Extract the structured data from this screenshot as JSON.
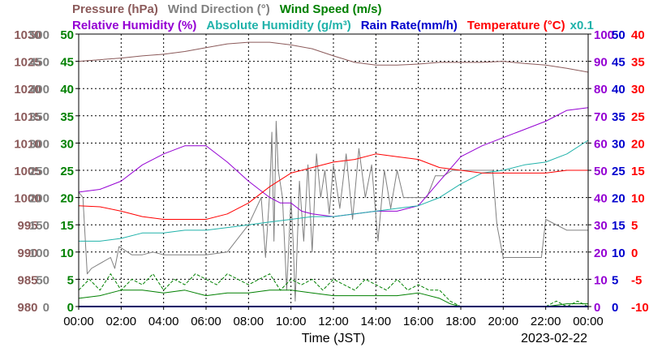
{
  "chart_data": {
    "type": "line",
    "date_label": "2023-02-22",
    "xlabel": "Time (JST)",
    "x_ticks": [
      "00:00",
      "02:00",
      "04:00",
      "06:00",
      "08:00",
      "10:00",
      "12:00",
      "14:00",
      "16:00",
      "18:00",
      "20:00",
      "22:00",
      "00:00"
    ],
    "x_range_hours": [
      0,
      24
    ],
    "legend_rows": [
      [
        {
          "text": "Pressure (hPa)",
          "color": "#8b5a5a"
        },
        {
          "text": "Wind Direction (°)",
          "color": "#808080"
        },
        {
          "text": "Wind Speed (m/s)",
          "color": "#008000"
        }
      ],
      [
        {
          "text": "Relative Humidity (%)",
          "color": "#9400d3"
        },
        {
          "text": "Absolute Humidity (g/m³)",
          "color": "#20b2aa"
        },
        {
          "text": "Rain Rate(mm/h)",
          "color": "#0000cd"
        },
        {
          "text": "Temperature (°C)",
          "color": "#ff0000"
        },
        {
          "text": "x0.1",
          "color": "#20b2aa"
        }
      ]
    ],
    "axes": {
      "pressure": {
        "color": "#8b5a5a",
        "ticks": [
          "980",
          "985",
          "990",
          "995",
          "1000",
          "1005",
          "1010",
          "1015",
          "1020",
          "1025",
          "1030"
        ],
        "range": [
          980,
          1030
        ]
      },
      "wind_direction": {
        "color": "#808080",
        "ticks": [
          "0",
          "50",
          "100",
          "150",
          "200",
          "250",
          "300",
          "350",
          "400",
          "450",
          "500"
        ],
        "range": [
          0,
          500
        ]
      },
      "wind_speed": {
        "color": "#008000",
        "ticks": [
          "0",
          "5",
          "10",
          "15",
          "20",
          "25",
          "30",
          "35",
          "40",
          "45",
          "50"
        ],
        "range": [
          0,
          50
        ]
      },
      "humidity": {
        "color": "#9400d3",
        "ticks": [
          "0",
          "10",
          "20",
          "30",
          "40",
          "50",
          "60",
          "70",
          "80",
          "90",
          "100"
        ],
        "range": [
          0,
          100
        ]
      },
      "rain_rate": {
        "color": "#0000cd",
        "ticks": [
          "0",
          "5",
          "10",
          "15",
          "20",
          "25",
          "30",
          "35",
          "40",
          "45",
          "50"
        ],
        "range": [
          0,
          50
        ]
      },
      "temperature": {
        "color": "#ff0000",
        "ticks": [
          "-10",
          "-5",
          "0",
          "5",
          "10",
          "15",
          "20",
          "25",
          "30",
          "35",
          "40"
        ],
        "range": [
          -10,
          40
        ]
      }
    },
    "series": [
      {
        "key": "pressure",
        "name": "Pressure (hPa)",
        "axis": "pressure",
        "color": "#8b5a5a",
        "x": [
          0,
          1,
          2,
          3,
          4,
          5,
          6,
          7,
          8,
          9,
          10,
          11,
          12,
          13,
          14,
          15,
          16,
          17,
          18,
          19,
          20,
          21,
          22,
          23,
          24
        ],
        "y": [
          1025,
          1025.3,
          1025.6,
          1026,
          1026.3,
          1026.8,
          1027.5,
          1028.2,
          1028.5,
          1028.5,
          1028,
          1027.3,
          1026,
          1024.8,
          1024.3,
          1024.3,
          1024.5,
          1024.8,
          1024.8,
          1024.8,
          1025,
          1024.6,
          1024.3,
          1023.7,
          1023
        ]
      },
      {
        "key": "wind_direction",
        "name": "Wind Direction (°)",
        "axis": "wind_direction",
        "color": "#808080",
        "x": [
          0,
          0.2,
          0.4,
          0.6,
          1.5,
          1.7,
          1.9,
          2.5,
          3,
          3.5,
          4,
          5,
          6,
          7,
          8,
          8.6,
          8.8,
          9,
          9.1,
          9.2,
          9.3,
          9.4,
          9.6,
          9.8,
          10,
          10.1,
          10.2,
          10.4,
          10.6,
          10.8,
          11,
          11.2,
          11.4,
          11.6,
          11.8,
          12,
          12.3,
          12.6,
          12.9,
          13.2,
          13.5,
          13.8,
          14.1,
          14.4,
          14.7,
          15,
          15.3,
          15.6,
          16,
          16.4,
          16.8,
          17.2,
          17.6,
          18,
          18.5,
          19,
          19.5,
          19.7,
          20,
          21,
          21.8,
          22,
          23,
          24
        ],
        "y": [
          210,
          200,
          60,
          70,
          90,
          70,
          110,
          95,
          95,
          100,
          95,
          95,
          95,
          100,
          150,
          200,
          90,
          210,
          320,
          120,
          340,
          250,
          200,
          30,
          200,
          120,
          10,
          230,
          120,
          260,
          100,
          280,
          200,
          250,
          170,
          260,
          180,
          280,
          160,
          290,
          200,
          260,
          120,
          250,
          180,
          250,
          200,
          200,
          200,
          200,
          240,
          240,
          250,
          250,
          250,
          250,
          250,
          150,
          90,
          90,
          90,
          160,
          140,
          140
        ]
      },
      {
        "key": "wind_speed",
        "name": "Wind Speed (m/s)",
        "axis": "wind_speed",
        "color": "#008000",
        "x": [
          0,
          1,
          2,
          3,
          4,
          5,
          6,
          7,
          8,
          9,
          10,
          11,
          12,
          13,
          14,
          15,
          16,
          17,
          17.5,
          18,
          19,
          20,
          21,
          22,
          23,
          24
        ],
        "y": [
          1.5,
          2,
          3,
          3,
          2.5,
          3,
          2,
          2.5,
          2.5,
          3,
          3,
          2.5,
          2,
          2,
          2,
          2,
          2.5,
          1.5,
          0.5,
          0,
          0,
          0,
          0,
          0,
          0.5,
          0.5
        ]
      },
      {
        "key": "wind_gust",
        "name": "",
        "axis": "wind_speed",
        "color": "#008000",
        "dashed": true,
        "x": [
          0,
          0.5,
          1,
          1.5,
          2,
          2.5,
          3,
          3.5,
          4,
          4.5,
          5,
          5.5,
          6,
          6.5,
          7,
          7.5,
          8,
          8.5,
          9,
          9.5,
          10,
          10.5,
          11,
          11.5,
          12,
          12.5,
          13,
          13.5,
          14,
          14.5,
          15,
          15.5,
          16,
          16.5,
          17,
          17.5,
          18,
          22,
          22.5,
          23,
          23.5,
          24
        ],
        "y": [
          3,
          5,
          3,
          6,
          3,
          5,
          4,
          6,
          3,
          5,
          4,
          6,
          5,
          4,
          6,
          5,
          4,
          5,
          6,
          3,
          5,
          4,
          5,
          3,
          5,
          4,
          3,
          5,
          4,
          3,
          5,
          3,
          4,
          3,
          3,
          1,
          0,
          0,
          1,
          0,
          1,
          0
        ]
      },
      {
        "key": "relative_humidity",
        "name": "Relative Humidity (%)",
        "axis": "humidity",
        "color": "#9400d3",
        "x": [
          0,
          1,
          2,
          3,
          4,
          5,
          6,
          7,
          8,
          9,
          9.5,
          10,
          10.5,
          11,
          12,
          13,
          14,
          15,
          16,
          17,
          18,
          19,
          20,
          21,
          22,
          23,
          24
        ],
        "y": [
          42,
          43,
          46,
          52,
          56,
          59,
          59,
          53,
          46,
          40,
          38,
          38,
          35,
          34,
          33,
          34,
          35,
          35,
          37,
          46,
          55,
          59,
          62,
          65,
          68,
          72,
          73
        ]
      },
      {
        "key": "absolute_humidity",
        "name": "Absolute Humidity (g/m³)",
        "axis": "humidity",
        "color": "#20b2aa",
        "x": [
          0,
          1,
          2,
          3,
          4,
          5,
          6,
          7,
          8,
          9,
          10,
          11,
          12,
          13,
          14,
          15,
          16,
          17,
          18,
          19,
          20,
          21,
          22,
          23,
          24
        ],
        "y": [
          24,
          24,
          25,
          27,
          27,
          28,
          28,
          29,
          30,
          31,
          32,
          33,
          33,
          34,
          35,
          36,
          37,
          40,
          45,
          49,
          50,
          52,
          53,
          56,
          61
        ]
      },
      {
        "key": "temperature",
        "name": "Temperature (°C)",
        "axis": "temperature",
        "color": "#ff0000",
        "x": [
          0,
          1,
          2,
          3,
          4,
          5,
          6,
          7,
          8,
          9,
          10,
          11,
          12,
          13,
          14,
          15,
          16,
          17,
          18,
          19,
          20,
          21,
          22,
          23,
          24
        ],
        "y": [
          8.5,
          8.3,
          7.5,
          6.5,
          6,
          6,
          6,
          7,
          9,
          12,
          14.5,
          15.5,
          16.5,
          17,
          18,
          17.5,
          17,
          15.5,
          15,
          14.5,
          14.5,
          14.5,
          14.5,
          15,
          15
        ]
      },
      {
        "key": "rain_rate",
        "name": "Rain Rate(mm/h)",
        "axis": "rain_rate",
        "color": "#0000cd",
        "x": [
          0,
          24
        ],
        "y": [
          0,
          0
        ]
      }
    ]
  }
}
